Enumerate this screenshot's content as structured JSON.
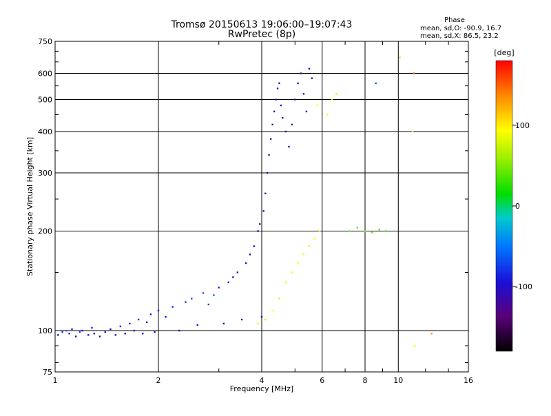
{
  "chart_data": {
    "type": "scatter",
    "title": "Tromsø 20150613 19:06:00–19:07:43",
    "subtitle": "RwPretec (8p)",
    "xlabel": "Frequency [MHz]",
    "ylabel": "Stationary phase Virtual Height [km]",
    "x_scale": "log",
    "y_scale": "log",
    "xlim": [
      1,
      16
    ],
    "ylim": [
      75,
      750
    ],
    "x_ticks": [
      1,
      2,
      4,
      6,
      8,
      10,
      16
    ],
    "x_tick_labels": [
      "1",
      "2",
      "4",
      "6",
      "8",
      "10",
      "16"
    ],
    "y_ticks": [
      75,
      100,
      200,
      300,
      400,
      500,
      600,
      750
    ],
    "y_tick_labels": [
      "75",
      "100",
      "200",
      "300",
      "400",
      "500",
      "600",
      "750"
    ],
    "grid": true,
    "phase_box": {
      "title": "Phase",
      "line_o": "mean, sd,O: -90.9, 16.7",
      "line_x": "mean, sd,X:  86.5, 23.2"
    },
    "colorbar": {
      "label": "[deg]",
      "range": [
        -180,
        180
      ],
      "ticks": [
        100,
        0,
        -100
      ],
      "tick_labels": [
        "100",
        "0",
        "-100"
      ]
    },
    "series": [
      {
        "points": [
          [
            1.02,
            97,
            -95
          ],
          [
            1.05,
            99,
            -80
          ],
          [
            1.08,
            100,
            -70
          ],
          [
            1.1,
            98,
            -90
          ],
          [
            1.12,
            101,
            -85
          ],
          [
            1.15,
            96,
            -100
          ],
          [
            1.18,
            99,
            -75
          ],
          [
            1.2,
            100,
            -95
          ],
          [
            1.25,
            97,
            -100
          ],
          [
            1.28,
            102,
            -88
          ],
          [
            1.3,
            98,
            -105
          ],
          [
            1.35,
            96,
            -110
          ],
          [
            1.4,
            99,
            -92
          ],
          [
            1.45,
            101,
            -98
          ],
          [
            1.5,
            97,
            -100
          ],
          [
            1.55,
            103,
            -90
          ],
          [
            1.6,
            98,
            -100
          ],
          [
            1.65,
            105,
            -85
          ],
          [
            1.7,
            100,
            -95
          ],
          [
            1.75,
            108,
            -90
          ],
          [
            1.8,
            98,
            -100
          ],
          [
            1.85,
            106,
            -92
          ],
          [
            1.9,
            112,
            -88
          ],
          [
            1.95,
            99,
            -98
          ],
          [
            2.0,
            115,
            -95
          ],
          [
            2.1,
            110,
            -90
          ],
          [
            2.2,
            118,
            -85
          ],
          [
            2.3,
            100,
            -100
          ],
          [
            2.4,
            122,
            -80
          ],
          [
            2.5,
            125,
            -70
          ],
          [
            2.6,
            104,
            -95
          ],
          [
            2.7,
            130,
            -65
          ],
          [
            2.8,
            120,
            -75
          ],
          [
            2.9,
            128,
            -60
          ],
          [
            3.0,
            135,
            -90
          ],
          [
            3.1,
            105,
            -100
          ],
          [
            3.2,
            140,
            -95
          ],
          [
            3.3,
            145,
            -100
          ],
          [
            3.4,
            150,
            -105
          ],
          [
            3.5,
            108,
            -95
          ],
          [
            3.6,
            160,
            -100
          ],
          [
            3.7,
            170,
            -105
          ],
          [
            3.8,
            180,
            -100
          ],
          [
            3.9,
            200,
            -110
          ],
          [
            3.95,
            210,
            -115
          ],
          [
            4.0,
            110,
            -95
          ],
          [
            4.05,
            230,
            -110
          ],
          [
            4.1,
            260,
            -105
          ],
          [
            4.15,
            300,
            -110
          ],
          [
            4.2,
            340,
            -120
          ],
          [
            4.25,
            380,
            -115
          ],
          [
            4.3,
            420,
            -110
          ],
          [
            4.35,
            460,
            -105
          ],
          [
            4.4,
            500,
            -110
          ],
          [
            4.45,
            540,
            -100
          ],
          [
            4.5,
            560,
            -95
          ],
          [
            4.55,
            480,
            -100
          ],
          [
            4.6,
            440,
            -105
          ],
          [
            4.7,
            400,
            -110
          ],
          [
            4.8,
            360,
            -100
          ],
          [
            4.9,
            420,
            -95
          ],
          [
            5.0,
            500,
            -100
          ],
          [
            5.1,
            560,
            -105
          ],
          [
            5.2,
            600,
            -110
          ],
          [
            5.3,
            520,
            -100
          ],
          [
            5.4,
            460,
            -95
          ],
          [
            5.5,
            620,
            -100
          ],
          [
            5.6,
            580,
            -105
          ]
        ]
      },
      {
        "points": [
          [
            3.9,
            105,
            100
          ],
          [
            4.1,
            108,
            110
          ],
          [
            4.3,
            115,
            95
          ],
          [
            4.5,
            125,
            105
          ],
          [
            4.7,
            140,
            100
          ],
          [
            4.9,
            150,
            90
          ],
          [
            5.1,
            160,
            95
          ],
          [
            5.3,
            170,
            100
          ],
          [
            5.5,
            180,
            105
          ],
          [
            5.7,
            190,
            95
          ],
          [
            5.9,
            200,
            100
          ],
          [
            6.2,
            450,
            95
          ],
          [
            6.4,
            500,
            100
          ],
          [
            6.6,
            520,
            105
          ],
          [
            5.8,
            480,
            90
          ],
          [
            7.2,
            200,
            45
          ],
          [
            7.6,
            205,
            40
          ],
          [
            8.0,
            200,
            50
          ],
          [
            8.4,
            198,
            45
          ],
          [
            8.8,
            202,
            40
          ],
          [
            9.2,
            200,
            35
          ],
          [
            11.2,
            90,
            90
          ],
          [
            11.0,
            400,
            95
          ],
          [
            12.5,
            98,
            130
          ],
          [
            8.6,
            560,
            -60
          ],
          [
            10.1,
            670,
            110
          ],
          [
            11.1,
            600,
            150
          ]
        ]
      }
    ]
  }
}
